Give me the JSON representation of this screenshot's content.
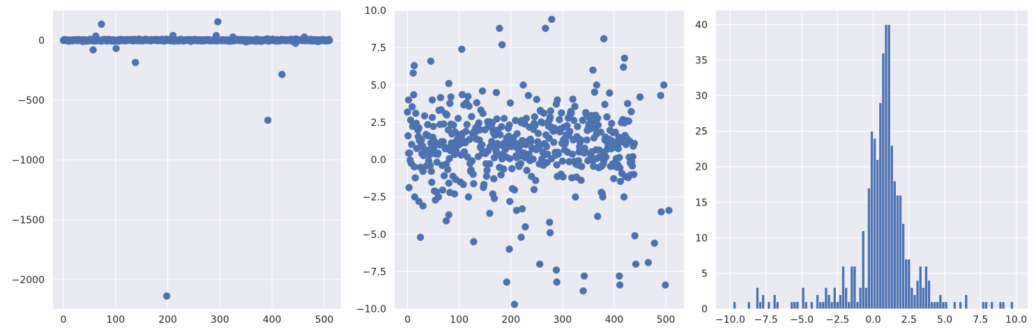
{
  "chart_data": [
    {
      "type": "scatter",
      "title": "",
      "xlabel": "",
      "ylabel": "",
      "xlim": [
        -20,
        532
      ],
      "ylim": [
        -2245,
        250
      ],
      "xticks": [
        0,
        100,
        200,
        300,
        400,
        500
      ],
      "yticks": [
        0,
        -500,
        -1000,
        -1500,
        -2000
      ],
      "xtick_labels": [
        "0",
        "100",
        "200",
        "300",
        "400",
        "500"
      ],
      "ytick_labels": [
        "0",
        "−500",
        "−1000",
        "−1500",
        "−2000"
      ],
      "grid": true,
      "color": "#4c72b0",
      "outliers": [
        {
          "x": 57,
          "y": -80
        },
        {
          "x": 62,
          "y": 35
        },
        {
          "x": 73,
          "y": 135
        },
        {
          "x": 101,
          "y": -68
        },
        {
          "x": 138,
          "y": -185
        },
        {
          "x": 198,
          "y": -2138
        },
        {
          "x": 210,
          "y": 40
        },
        {
          "x": 293,
          "y": 40
        },
        {
          "x": 296,
          "y": 155
        },
        {
          "x": 325,
          "y": 28
        },
        {
          "x": 392,
          "y": -668
        },
        {
          "x": 419,
          "y": -285
        },
        {
          "x": 445,
          "y": -25
        },
        {
          "x": 462,
          "y": 28
        }
      ],
      "bulk": {
        "n": 511,
        "center": 1.0,
        "spread": 8
      }
    },
    {
      "type": "scatter",
      "title": "",
      "xlabel": "",
      "ylabel": "",
      "xlim": [
        -25,
        535
      ],
      "ylim": [
        -10,
        10
      ],
      "xticks": [
        0,
        100,
        200,
        300,
        400,
        500
      ],
      "yticks": [
        10.0,
        7.5,
        5.0,
        2.5,
        0.0,
        -2.5,
        -5.0,
        -7.5,
        -10.0
      ],
      "xtick_labels": [
        "0",
        "100",
        "200",
        "300",
        "400",
        "500"
      ],
      "ytick_labels": [
        "10.0",
        "7.5",
        "5.0",
        "2.5",
        "0.0",
        "−2.5",
        "−5.0",
        "−7.5",
        "−10.0"
      ],
      "grid": true,
      "color": "#4c72b0",
      "outliers": [
        {
          "x": 2,
          "y": 4.0
        },
        {
          "x": 11,
          "y": 5.8
        },
        {
          "x": 13,
          "y": 6.3
        },
        {
          "x": 22,
          "y": -2.8
        },
        {
          "x": 25,
          "y": -5.2
        },
        {
          "x": 30,
          "y": -3.1
        },
        {
          "x": 45,
          "y": 6.6
        },
        {
          "x": 48,
          "y": 4.0
        },
        {
          "x": 52,
          "y": -2.1
        },
        {
          "x": 54,
          "y": -2.7
        },
        {
          "x": 75,
          "y": -4.1
        },
        {
          "x": 80,
          "y": 5.1
        },
        {
          "x": 80,
          "y": -3.7
        },
        {
          "x": 82,
          "y": -2.2
        },
        {
          "x": 84,
          "y": 4.2
        },
        {
          "x": 91,
          "y": -2.3
        },
        {
          "x": 105,
          "y": 7.4
        },
        {
          "x": 128,
          "y": -5.5
        },
        {
          "x": 145,
          "y": 4.6
        },
        {
          "x": 159,
          "y": -3.6
        },
        {
          "x": 165,
          "y": -2.3
        },
        {
          "x": 168,
          "y": -2.6
        },
        {
          "x": 172,
          "y": 4.5
        },
        {
          "x": 178,
          "y": 8.8
        },
        {
          "x": 183,
          "y": 7.7
        },
        {
          "x": 192,
          "y": -8.2
        },
        {
          "x": 197,
          "y": -6.0
        },
        {
          "x": 198,
          "y": -2.8
        },
        {
          "x": 199,
          "y": 3.8
        },
        {
          "x": 207,
          "y": -9.7
        },
        {
          "x": 211,
          "y": -3.4
        },
        {
          "x": 220,
          "y": -5.2
        },
        {
          "x": 222,
          "y": -3.3
        },
        {
          "x": 228,
          "y": -4.5
        },
        {
          "x": 234,
          "y": 4.3
        },
        {
          "x": 245,
          "y": -2.0
        },
        {
          "x": 256,
          "y": -7.0
        },
        {
          "x": 267,
          "y": 8.8
        },
        {
          "x": 275,
          "y": -4.2
        },
        {
          "x": 276,
          "y": -4.9
        },
        {
          "x": 279,
          "y": 9.4
        },
        {
          "x": 288,
          "y": -7.4
        },
        {
          "x": 289,
          "y": -8.2
        },
        {
          "x": 290,
          "y": 4.0
        },
        {
          "x": 340,
          "y": -8.8
        },
        {
          "x": 342,
          "y": -7.8
        },
        {
          "x": 359,
          "y": 6.0
        },
        {
          "x": 366,
          "y": 5.0
        },
        {
          "x": 368,
          "y": -3.8
        },
        {
          "x": 380,
          "y": 8.1
        },
        {
          "x": 382,
          "y": 3.7
        },
        {
          "x": 410,
          "y": -7.8
        },
        {
          "x": 411,
          "y": -8.4
        },
        {
          "x": 418,
          "y": 6.2
        },
        {
          "x": 420,
          "y": 6.8
        },
        {
          "x": 440,
          "y": -5.1
        },
        {
          "x": 442,
          "y": -7.0
        },
        {
          "x": 450,
          "y": 4.2
        },
        {
          "x": 466,
          "y": -6.9
        },
        {
          "x": 478,
          "y": -5.6
        },
        {
          "x": 490,
          "y": 4.3
        },
        {
          "x": 491,
          "y": -3.5
        },
        {
          "x": 496,
          "y": 5.0
        },
        {
          "x": 499,
          "y": -8.4
        },
        {
          "x": 506,
          "y": -3.4
        }
      ],
      "bulk": {
        "n": 440,
        "center": 1.0,
        "spread": 1.6
      }
    },
    {
      "type": "bar",
      "title": "",
      "xlabel": "",
      "ylabel": "",
      "xlim": [
        -11.0,
        10.8
      ],
      "ylim": [
        0,
        42
      ],
      "bin_width": 0.2,
      "xticks": [
        -10.0,
        -7.5,
        -5.0,
        -2.5,
        0.0,
        2.5,
        5.0,
        7.5,
        10.0
      ],
      "yticks": [
        0,
        5,
        10,
        15,
        20,
        25,
        30,
        35,
        40
      ],
      "xtick_labels": [
        "−10.0",
        "−7.5",
        "−5.0",
        "−2.5",
        "0.0",
        "2.5",
        "5.0",
        "7.5",
        "10.0"
      ],
      "ytick_labels": [
        "0",
        "5",
        "10",
        "15",
        "20",
        "25",
        "30",
        "35",
        "40"
      ],
      "grid": true,
      "color": "#4c72b0",
      "bin_left": [
        -9.8,
        -8.8,
        -8.2,
        -8.0,
        -7.8,
        -7.4,
        -7.0,
        -6.8,
        -5.8,
        -5.6,
        -5.4,
        -5.0,
        -4.8,
        -4.4,
        -4.0,
        -3.8,
        -3.6,
        -3.4,
        -3.2,
        -3.0,
        -2.8,
        -2.6,
        -2.4,
        -2.2,
        -2.0,
        -1.8,
        -1.6,
        -1.4,
        -1.2,
        -1.0,
        -0.8,
        -0.6,
        -0.4,
        -0.2,
        0.0,
        0.2,
        0.4,
        0.6,
        0.8,
        1.0,
        1.2,
        1.4,
        1.6,
        1.8,
        2.0,
        2.2,
        2.4,
        2.6,
        2.8,
        3.0,
        3.2,
        3.4,
        3.6,
        3.8,
        4.0,
        4.2,
        4.4,
        4.6,
        4.8,
        5.0,
        5.6,
        6.0,
        6.4,
        7.6,
        7.8,
        8.2,
        8.8,
        9.0,
        9.6
      ],
      "values": [
        1,
        1,
        3,
        1,
        2,
        1,
        2,
        1,
        1,
        1,
        1,
        3,
        1,
        1,
        2,
        1,
        1,
        3,
        2,
        1,
        3,
        1,
        2,
        6,
        3,
        1,
        6,
        6,
        1,
        3,
        11,
        3,
        17,
        25,
        24,
        21,
        29,
        36,
        40,
        40,
        23,
        18,
        16,
        16,
        12,
        7,
        7,
        3,
        2,
        4,
        6,
        3,
        6,
        4,
        1,
        1,
        1,
        2,
        1,
        1,
        1,
        1,
        2,
        1,
        1,
        1,
        1,
        1,
        1
      ]
    }
  ]
}
